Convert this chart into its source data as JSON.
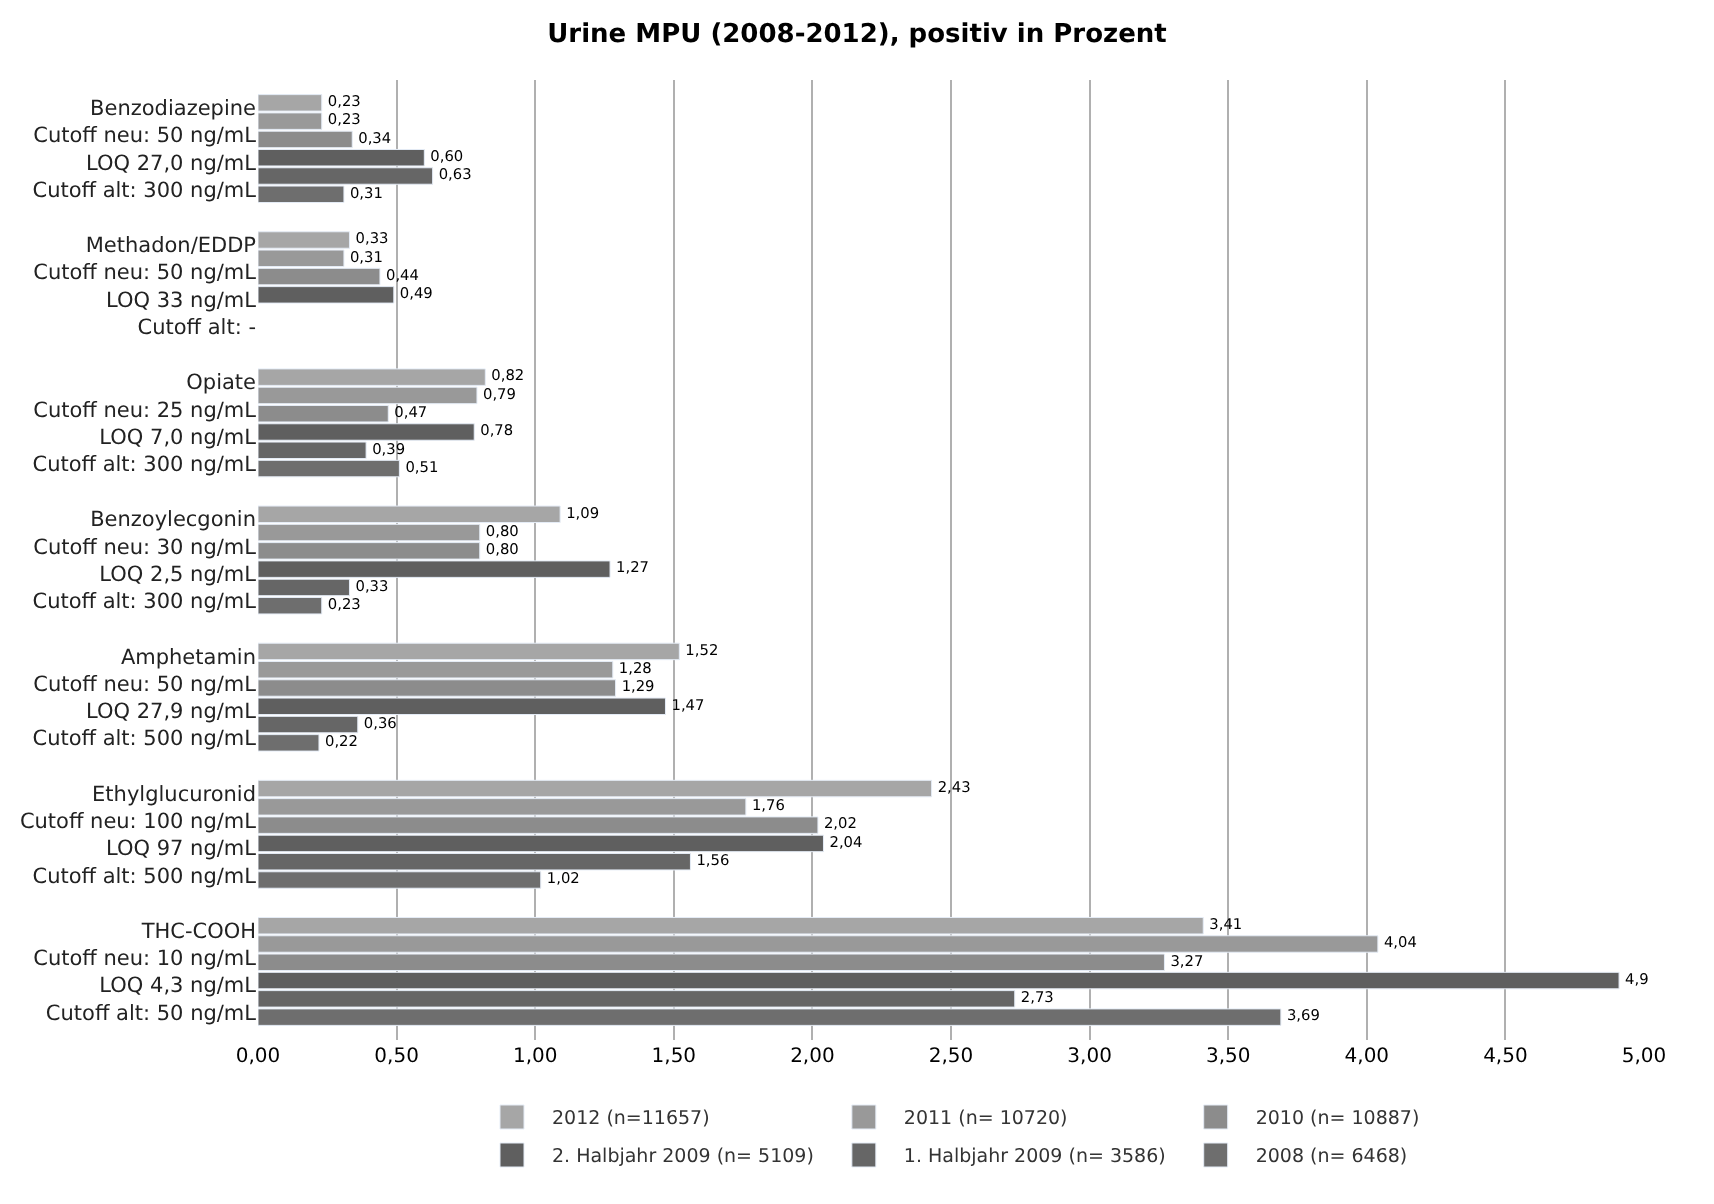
{
  "chart_data": {
    "type": "bar",
    "orientation": "horizontal",
    "title": "Urine MPU (2008-2012), positiv in Prozent",
    "categories": [
      "Benzodiazepine\nCutoff neu: 50 ng/mL\nLOQ 27,0 ng/mL\nCutoff alt: 300 ng/mL",
      "Methadon/EDDP\nCutoff neu: 50 ng/mL\nLOQ 33 ng/mL\nCutoff alt: -",
      "Opiate\nCutoff neu: 25 ng/mL\nLOQ 7,0 ng/mL\nCutoff alt: 300 ng/mL",
      "Benzoylecgonin\nCutoff neu: 30 ng/mL\nLOQ 2,5 ng/mL\nCutoff alt: 300 ng/mL",
      "Amphetamin\nCutoff neu: 50 ng/mL\nLOQ 27,9 ng/mL\nCutoff alt: 500 ng/mL",
      "Ethylglucuronid\nCutoff neu: 100 ng/mL\nLOQ 97 ng/mL\nCutoff alt: 500 ng/mL",
      "THC-COOH\nCutoff neu: 10 ng/mL\nLOQ 4,3 ng/mL\nCutoff alt: 50 ng/mL"
    ],
    "series": [
      {
        "name": "2012 (n=11657)",
        "color": "#a6a6a6",
        "values": [
          0.23,
          0.33,
          0.82,
          1.09,
          1.52,
          2.43,
          3.41
        ],
        "value_labels": [
          "0,23",
          "0,33",
          "0,82",
          "1,09",
          "1,52",
          "2,43",
          "3,41"
        ]
      },
      {
        "name": "2011 (n= 10720)",
        "color": "#999999",
        "values": [
          0.23,
          0.31,
          0.79,
          0.8,
          1.28,
          1.76,
          4.04
        ],
        "value_labels": [
          "0,23",
          "0,31",
          "0,79",
          "0,80",
          "1,28",
          "1,76",
          "4,04"
        ]
      },
      {
        "name": "2010 (n= 10887)",
        "color": "#8c8c8c",
        "values": [
          0.34,
          0.44,
          0.47,
          0.8,
          1.29,
          2.02,
          3.27
        ],
        "value_labels": [
          "0,34",
          "0,44",
          "0,47",
          "0,80",
          "1,29",
          "2,02",
          "3,27"
        ]
      },
      {
        "name": "2. Halbjahr 2009 (n= 5109)",
        "color": "#5f5f5f",
        "values": [
          0.6,
          0.49,
          0.78,
          1.27,
          1.47,
          2.04,
          4.91
        ],
        "value_labels": [
          "0,60",
          "0,49",
          "0,78",
          "1,27",
          "1,47",
          "2,04",
          "4,9"
        ]
      },
      {
        "name": "1. Halbjahr 2009 (n= 3586)",
        "color": "#666666",
        "values": [
          0.63,
          null,
          0.39,
          0.33,
          0.36,
          1.56,
          2.73
        ],
        "value_labels": [
          "0,63",
          null,
          "0,39",
          "0,33",
          "0,36",
          "1,56",
          "2,73"
        ]
      },
      {
        "name": "2008 (n= 6468)",
        "color": "#6e6e6e",
        "values": [
          0.31,
          null,
          0.51,
          0.23,
          0.22,
          1.02,
          3.69
        ],
        "value_labels": [
          "0,31",
          null,
          "0,51",
          "0,23",
          "0,22",
          "1,02",
          "3,69"
        ]
      }
    ],
    "xlim": [
      0,
      5
    ],
    "xticks": [
      {
        "value": 0,
        "label": "0,00"
      },
      {
        "value": 0.5,
        "label": "0,50"
      },
      {
        "value": 1,
        "label": "1,00"
      },
      {
        "value": 1.5,
        "label": "1,50"
      },
      {
        "value": 2,
        "label": "2,00"
      },
      {
        "value": 2.5,
        "label": "2,50"
      },
      {
        "value": 3,
        "label": "3,00"
      },
      {
        "value": 3.5,
        "label": "3,50"
      },
      {
        "value": 4,
        "label": "4,00"
      },
      {
        "value": 4.5,
        "label": "4,50"
      },
      {
        "value": 5,
        "label": "5,00"
      }
    ],
    "grid": "x",
    "legend": "bottom"
  }
}
